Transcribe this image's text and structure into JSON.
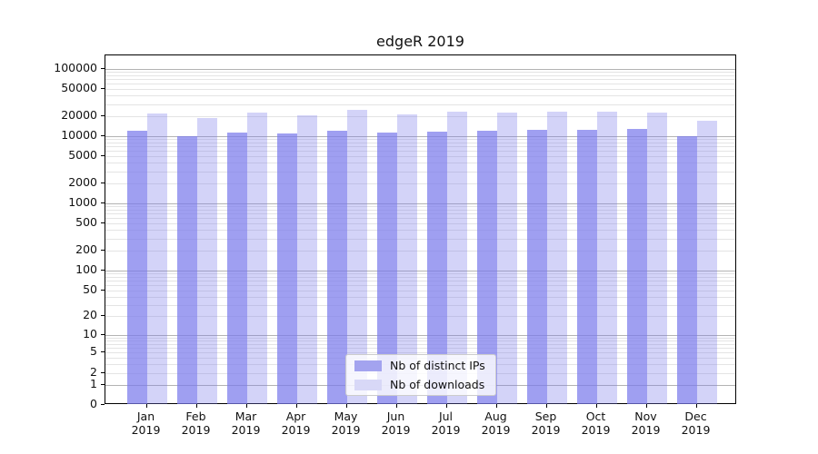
{
  "title": "edgeR 2019",
  "chart_data": {
    "type": "bar",
    "title": "edgeR 2019",
    "categories": [
      "Jan 2019",
      "Feb 2019",
      "Mar 2019",
      "Apr 2019",
      "May 2019",
      "Jun 2019",
      "Jul 2019",
      "Aug 2019",
      "Sep 2019",
      "Oct 2019",
      "Nov 2019",
      "Dec 2019"
    ],
    "series": [
      {
        "name": "Nb of distinct IPs",
        "legend_color": "#a3a3ef",
        "fill": "rgba(122,122,235,0.72)",
        "values": [
          12100,
          10100,
          11500,
          11000,
          12200,
          11300,
          11800,
          12200,
          12600,
          12300,
          12900,
          9900
        ]
      },
      {
        "name": "Nb of downloads",
        "legend_color": "#d8d8f7",
        "fill": "rgba(122,122,235,0.33)",
        "values": [
          21500,
          18400,
          22200,
          20400,
          24700,
          21300,
          22900,
          22600,
          22900,
          23300,
          22200,
          17200
        ]
      }
    ],
    "xlabel": "",
    "ylabel": "",
    "y_scale": "log10(1+v)",
    "y_tick_values": [
      0,
      1,
      2,
      5,
      10,
      20,
      50,
      100,
      200,
      500,
      1000,
      2000,
      5000,
      10000,
      20000,
      50000,
      100000
    ],
    "y_tick_labels": [
      "0",
      "1",
      "2",
      "5",
      "10",
      "20",
      "50",
      "100",
      "200",
      "500",
      "1000",
      "2000",
      "5000",
      "10000",
      "20000",
      "50000",
      "100000"
    ],
    "ylim": [
      0,
      157000
    ],
    "grid": "horizontal major+minor",
    "legend_position": "inside-bottom-center"
  },
  "colors": {
    "background": "#ffffff",
    "axis": "#000000",
    "grid_major": "#b3b3b3",
    "grid_minor": "#e4e4e4",
    "text": "#111111",
    "legend_border": "#cccccc"
  }
}
